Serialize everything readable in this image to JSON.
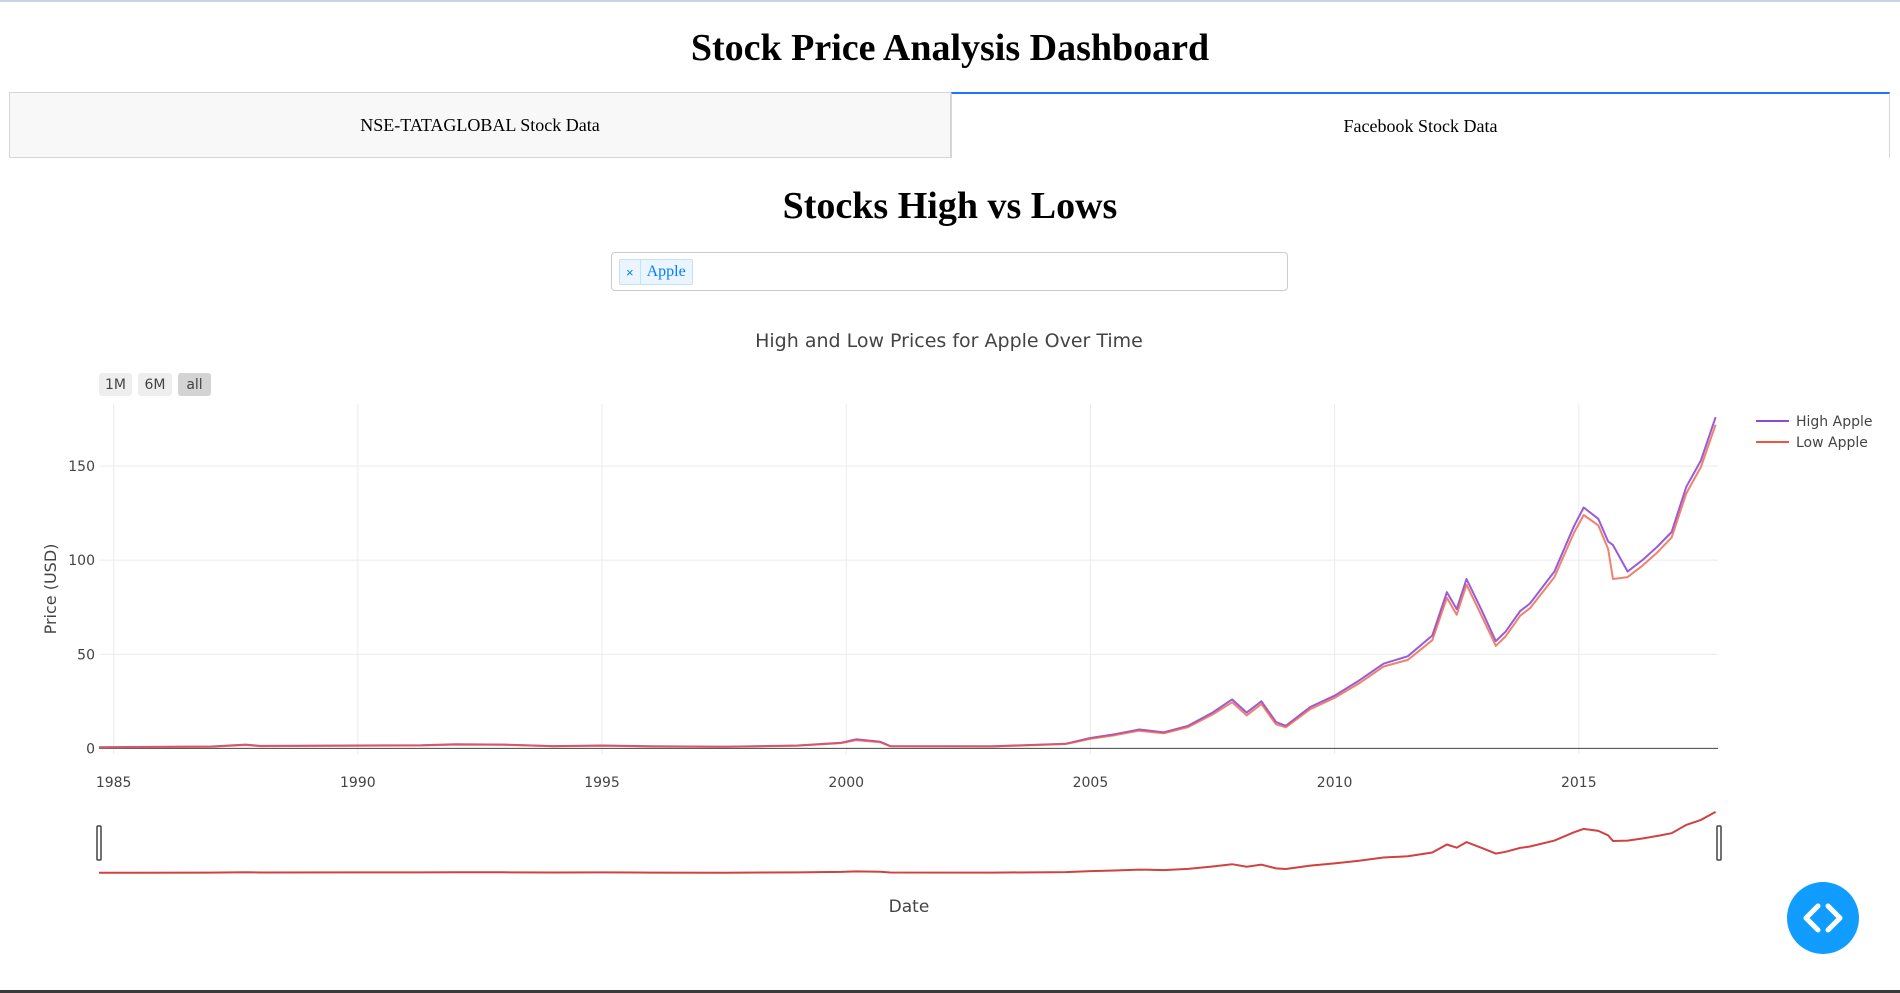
{
  "page": {
    "title": "Stock Price Analysis Dashboard"
  },
  "tabs": [
    {
      "label": "NSE-TATAGLOBAL Stock Data",
      "selected": false
    },
    {
      "label": "Facebook Stock Data",
      "selected": true
    }
  ],
  "section": {
    "title": "Stocks High vs Lows"
  },
  "dropdown": {
    "selected": [
      "Apple"
    ],
    "remove_glyph": "×"
  },
  "range_selector": [
    "1M",
    "6M",
    "all"
  ],
  "fab": {
    "icon": "code-chevrons-icon",
    "color": "#119dff"
  },
  "chart_data": {
    "type": "line",
    "title": "High and Low Prices for Apple Over Time",
    "xlabel": "Date",
    "ylabel": "Price (USD)",
    "xlim": [
      1984.7,
      2017.85
    ],
    "ylim": [
      -3,
      183
    ],
    "x_ticks": [
      1985,
      1990,
      1995,
      2000,
      2005,
      2010,
      2015
    ],
    "x_tick_labels": [
      "1985",
      "1990",
      "1995",
      "2000",
      "2005",
      "2010",
      "2015"
    ],
    "y_ticks": [
      0,
      50,
      100,
      150
    ],
    "y_tick_labels": [
      "0",
      "50",
      "100",
      "150"
    ],
    "grid": true,
    "legend_position": "top-right",
    "range_slider": true,
    "series": [
      {
        "name": "High Apple",
        "color": "#8c4ad6",
        "x": [
          1984.7,
          1987.0,
          1987.7,
          1988.0,
          1990.0,
          1991.3,
          1992.0,
          1993.0,
          1994.0,
          1995.0,
          1996.0,
          1997.5,
          1999.0,
          1999.9,
          2000.2,
          2000.7,
          2000.9,
          2003.0,
          2004.5,
          2005.0,
          2005.5,
          2006.0,
          2006.5,
          2007.0,
          2007.5,
          2007.9,
          2008.2,
          2008.5,
          2008.8,
          2009.0,
          2009.5,
          2010.0,
          2010.5,
          2011.0,
          2011.5,
          2012.0,
          2012.3,
          2012.5,
          2012.7,
          2013.0,
          2013.3,
          2013.5,
          2013.8,
          2014.0,
          2014.5,
          2014.9,
          2015.1,
          2015.4,
          2015.6,
          2015.7,
          2016.0,
          2016.3,
          2016.6,
          2016.9,
          2017.2,
          2017.5,
          2017.8
        ],
        "values": [
          0.6,
          1.0,
          2.0,
          1.3,
          1.5,
          1.6,
          2.2,
          2.0,
          1.2,
          1.5,
          1.1,
          0.9,
          1.5,
          3.0,
          4.8,
          3.5,
          1.2,
          1.1,
          2.5,
          5.5,
          7.5,
          10.0,
          8.5,
          12.0,
          19.0,
          26.0,
          19.0,
          25.0,
          14.0,
          12.0,
          22.0,
          28.0,
          36.0,
          45.0,
          49.0,
          60.0,
          83.0,
          74.0,
          90.0,
          74.0,
          57.0,
          62.0,
          73.0,
          77.0,
          94.0,
          118.0,
          128.0,
          122.0,
          110.0,
          108.0,
          94.0,
          100.0,
          107.0,
          115.0,
          139.0,
          153.0,
          176.0
        ]
      },
      {
        "name": "Low Apple",
        "color": "#ef553b",
        "x": [
          1984.7,
          1987.0,
          1987.7,
          1988.0,
          1990.0,
          1991.3,
          1992.0,
          1993.0,
          1994.0,
          1995.0,
          1996.0,
          1997.5,
          1999.0,
          1999.9,
          2000.2,
          2000.7,
          2000.9,
          2003.0,
          2004.5,
          2005.0,
          2005.5,
          2006.0,
          2006.5,
          2007.0,
          2007.5,
          2007.9,
          2008.2,
          2008.5,
          2008.8,
          2009.0,
          2009.5,
          2010.0,
          2010.5,
          2011.0,
          2011.5,
          2012.0,
          2012.3,
          2012.5,
          2012.7,
          2013.0,
          2013.3,
          2013.5,
          2013.8,
          2014.0,
          2014.5,
          2014.9,
          2015.1,
          2015.4,
          2015.6,
          2015.7,
          2016.0,
          2016.3,
          2016.6,
          2016.9,
          2017.2,
          2017.5,
          2017.8
        ],
        "values": [
          0.5,
          0.9,
          1.8,
          1.2,
          1.4,
          1.5,
          2.0,
          1.9,
          1.1,
          1.4,
          1.0,
          0.8,
          1.4,
          2.8,
          4.4,
          3.2,
          1.1,
          1.0,
          2.3,
          5.1,
          7.0,
          9.4,
          8.0,
          11.3,
          18.0,
          24.5,
          17.5,
          23.5,
          12.8,
          11.2,
          20.8,
          26.8,
          34.5,
          43.5,
          47.0,
          57.5,
          80.0,
          71.0,
          87.0,
          71.0,
          54.5,
          59.5,
          70.5,
          74.5,
          91.0,
          114.5,
          124.0,
          118.5,
          106.0,
          90.0,
          91.0,
          97.0,
          104.0,
          112.0,
          135.5,
          149.5,
          172.0
        ]
      }
    ]
  }
}
